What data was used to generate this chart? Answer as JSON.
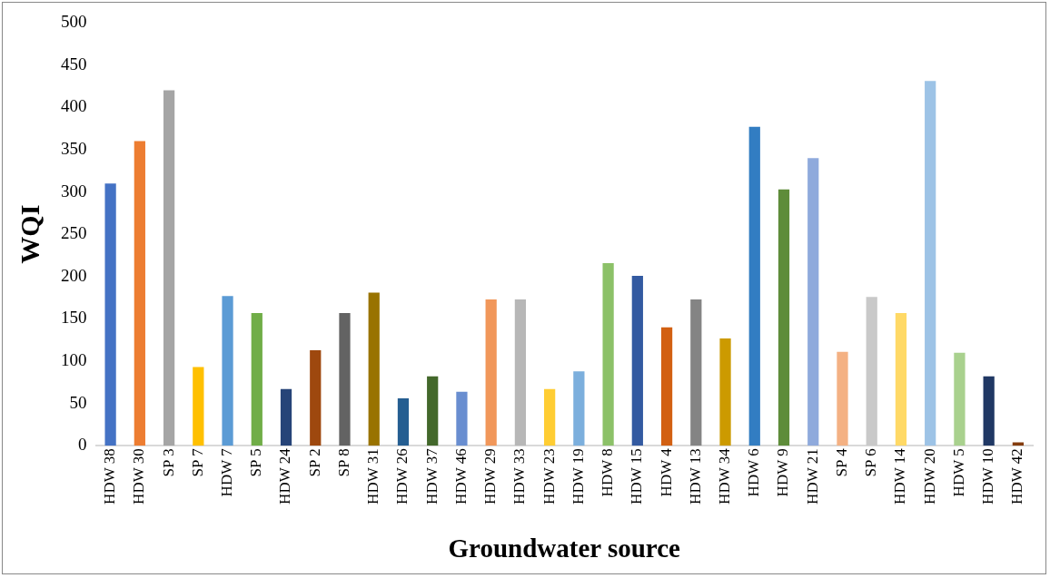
{
  "chart_data": {
    "type": "bar",
    "xlabel": "Groundwater source",
    "ylabel": "WQI",
    "categories": [
      "HDW 38",
      "HDW 30",
      "SP 3",
      "SP 7",
      "HDW 7",
      "SP 5",
      "HDW 24",
      "SP 2",
      "SP 8",
      "HDW 31",
      "HDW 26",
      "HDW 37",
      "HDW 46",
      "HDW 29",
      "HDW 33",
      "HDW 23",
      "HDW 19",
      "HDW 8",
      "HDW 15",
      "HDW 4",
      "HDW 13",
      "HDW 34",
      "HDW 6",
      "HDW 9",
      "HDW 21",
      "SP 4",
      "SP 6",
      "HDW 14",
      "HDW 20",
      "HDW 5",
      "HDW 10",
      "HDW 42"
    ],
    "values": [
      310,
      360,
      420,
      93,
      177,
      157,
      67,
      113,
      157,
      181,
      56,
      82,
      64,
      173,
      173,
      67,
      88,
      216,
      201,
      140,
      173,
      127,
      377,
      303,
      340,
      111,
      176,
      157,
      431,
      110,
      82,
      4
    ],
    "colors": [
      "#4472c4",
      "#ed7d31",
      "#a5a5a5",
      "#ffc000",
      "#5b9bd5",
      "#70ad47",
      "#264478",
      "#9e480e",
      "#636363",
      "#997300",
      "#255e91",
      "#43682b",
      "#698ed0",
      "#f1975a",
      "#b7b7b7",
      "#ffcd33",
      "#7cafdd",
      "#8cc168",
      "#335aa1",
      "#d26012",
      "#848484",
      "#cc9a00",
      "#327dc2",
      "#5e8c3a",
      "#8faadc",
      "#f4b183",
      "#c9c9c9",
      "#ffd966",
      "#9dc3e6",
      "#a9d18e",
      "#203864",
      "#843c0c"
    ],
    "ylim": [
      0,
      500
    ],
    "yticks": [
      0,
      50,
      100,
      150,
      200,
      250,
      300,
      350,
      400,
      450,
      500
    ],
    "grid": false,
    "legend": false
  }
}
